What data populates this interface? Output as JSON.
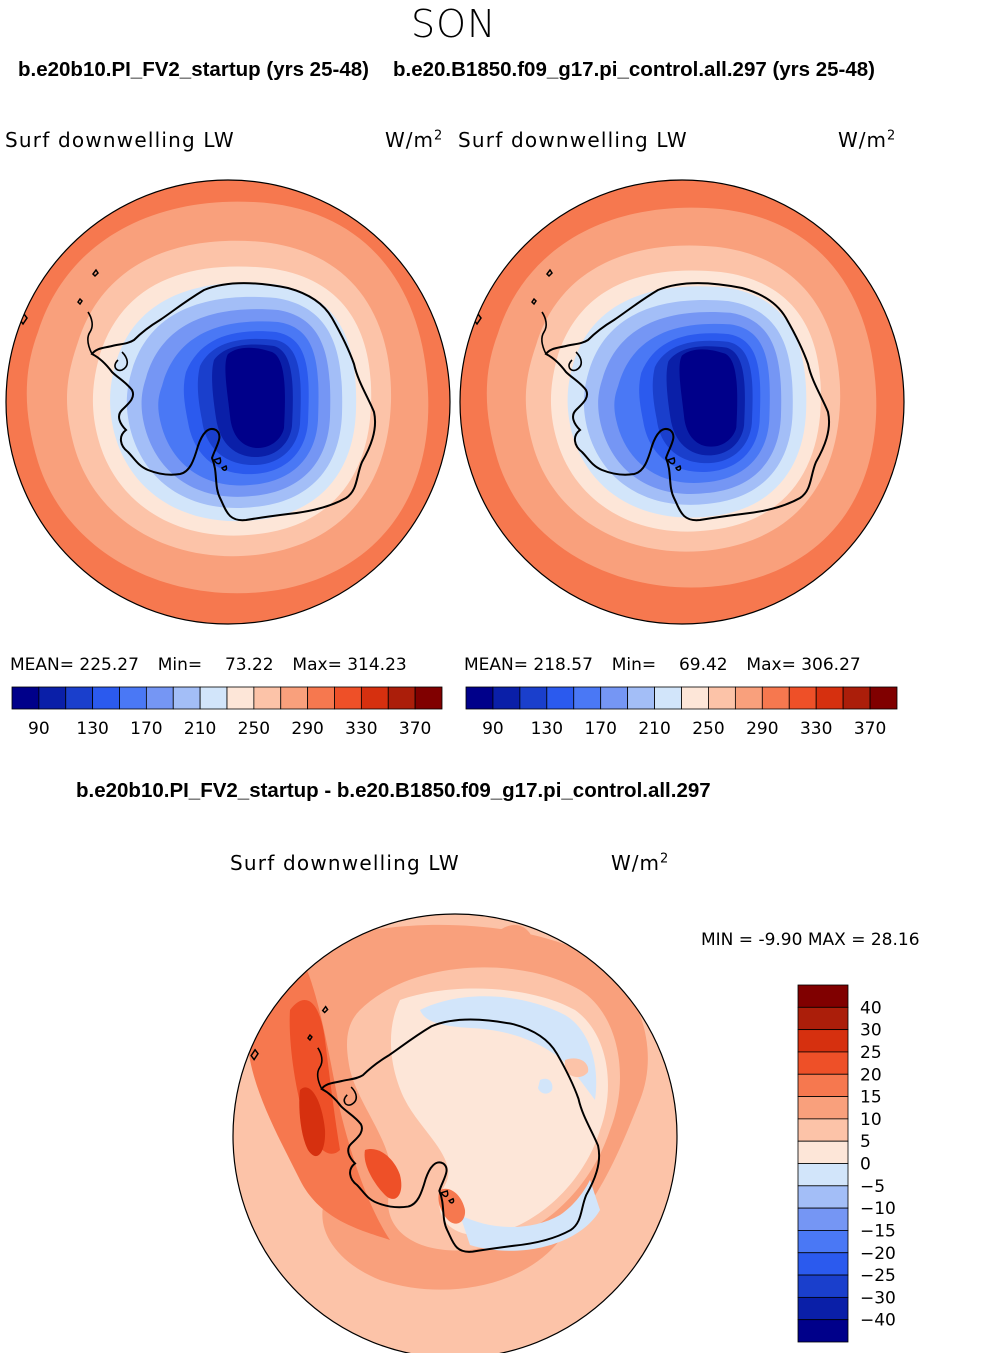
{
  "figure": {
    "season": "SON",
    "left_title": "b.e20b10.PI_FV2_startup (yrs 25-48)",
    "right_title": "b.e20.B1850.f09_g17.pi_control.all.297 (yrs 25-48)",
    "diff_title": "b.e20b10.PI_FV2_startup - b.e20.B1850.f09_g17.pi_control.all.297"
  },
  "panels": [
    {
      "variable": "Surf downwelling LW",
      "units": "W/m",
      "units_sup": "2",
      "stats": {
        "mean_label": "MEAN=",
        "mean": "225.27",
        "min_label": "Min=",
        "min": "73.22",
        "max_label": "Max=",
        "max": "314.23"
      }
    },
    {
      "variable": "Surf downwelling LW",
      "units": "W/m",
      "units_sup": "2",
      "stats": {
        "mean_label": "MEAN=",
        "mean": "218.57",
        "min_label": "Min=",
        "min": "69.42",
        "max_label": "Max=",
        "max": "306.27"
      }
    }
  ],
  "diff_panel": {
    "variable": "Surf downwelling LW",
    "units": "W/m",
    "units_sup": "2",
    "min_label": "MIN =",
    "min": "-9.90",
    "max_label": "MAX =",
    "max": "28.16"
  },
  "colorbar_abs": {
    "tick_labels": [
      "90",
      "130",
      "170",
      "210",
      "250",
      "290",
      "330",
      "370"
    ],
    "colors": [
      "#00008a",
      "#0a1fa8",
      "#1a3fcc",
      "#2b5aee",
      "#4a78f5",
      "#7596f4",
      "#a3bef7",
      "#d2e5fa",
      "#fde6d8",
      "#fcc3a8",
      "#f9a07c",
      "#f6784f",
      "#ee5028",
      "#d6300f",
      "#ab1e0a",
      "#800000"
    ]
  },
  "colorbar_diff": {
    "tick_labels": [
      "40",
      "30",
      "25",
      "20",
      "15",
      "10",
      "5",
      "0",
      "−5",
      "−10",
      "−15",
      "−20",
      "−25",
      "−30",
      "−40"
    ],
    "colors": [
      "#800000",
      "#ab1e0a",
      "#d6300f",
      "#ee5028",
      "#f6784f",
      "#f9a07c",
      "#fcc3a8",
      "#fde6d8",
      "#d2e5fa",
      "#a3bef7",
      "#7596f4",
      "#4a78f5",
      "#2b5aee",
      "#1a3fcc",
      "#0a1fa8",
      "#00008a"
    ]
  }
}
